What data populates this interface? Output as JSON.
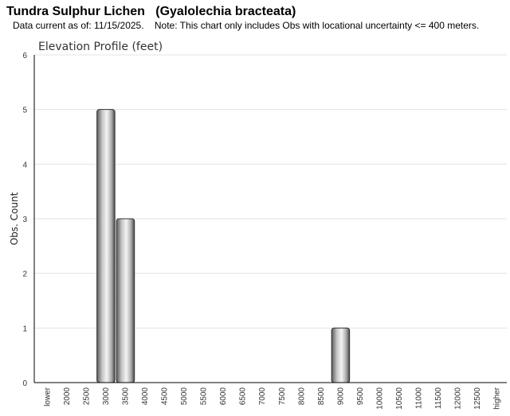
{
  "page": {
    "title": "Tundra Sulphur Lichen   (Gyalolechia bracteata)",
    "subtitle": "Data current as of: 11/15/2025.    Note: This chart only includes Obs with locational uncertainty <= 400 meters."
  },
  "chart_data": {
    "type": "bar",
    "title": "Elevation Profile (feet)",
    "xlabel": "",
    "ylabel": "Obs. Count",
    "ylim": [
      0,
      6
    ],
    "yticks": [
      "0",
      "1",
      "2",
      "3",
      "4",
      "5",
      "6"
    ],
    "grid": true,
    "categories": [
      "lower",
      "2000",
      "2500",
      "3000",
      "3500",
      "4000",
      "4500",
      "5000",
      "5500",
      "6000",
      "6500",
      "7000",
      "7500",
      "8000",
      "8500",
      "9000",
      "9500",
      "10000",
      "10500",
      "11000",
      "11500",
      "12000",
      "12500",
      "higher"
    ],
    "values": [
      0,
      0,
      0,
      5,
      3,
      0,
      0,
      0,
      0,
      0,
      0,
      0,
      0,
      0,
      0,
      1,
      0,
      0,
      0,
      0,
      0,
      0,
      0,
      0
    ],
    "colors": {
      "bar_dark": "#4a4a4a",
      "bar_light": "#f2f2f2",
      "grid": "#e3e3e3",
      "axis": "#000000"
    }
  }
}
